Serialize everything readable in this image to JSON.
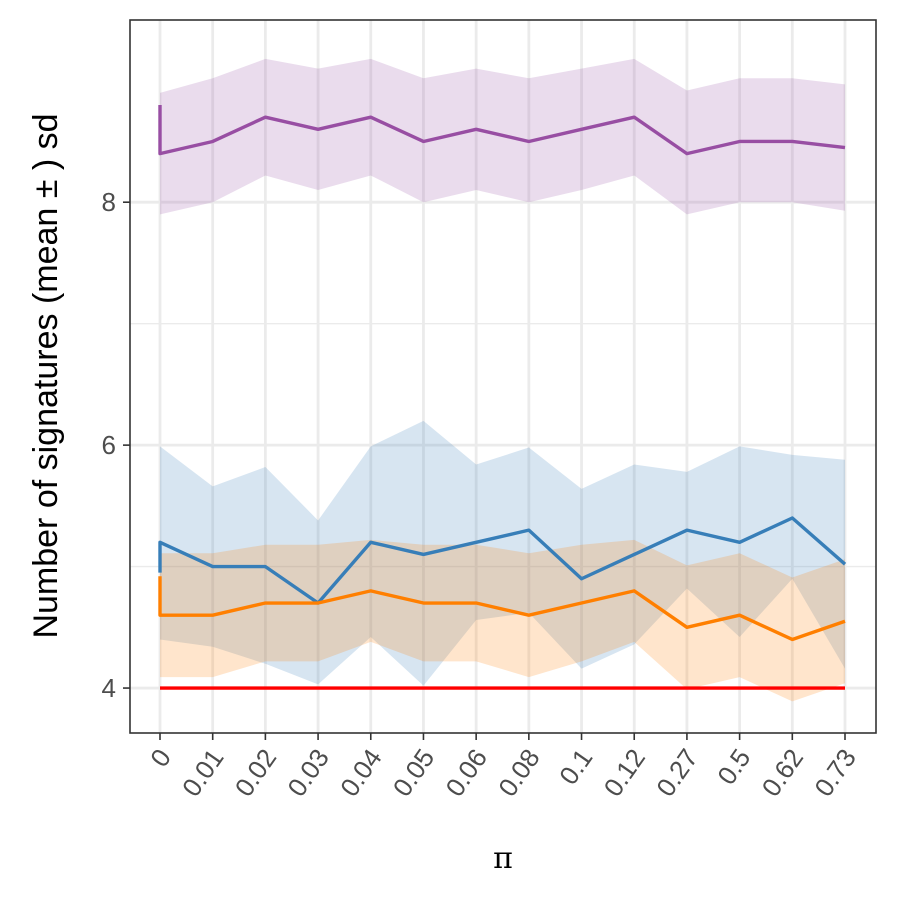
{
  "chart_data": {
    "type": "line",
    "title": "",
    "xlabel": "π",
    "ylabel": "Number of signatures (mean ± ) sd",
    "categories": [
      "0",
      "0.01",
      "0.02",
      "0.03",
      "0.04",
      "0.05",
      "0.06",
      "0.08",
      "0.1",
      "0.12",
      "0.27",
      "0.5",
      "0.62",
      "0.73"
    ],
    "x_tick_rotation_deg": -55,
    "ylim": [
      3.63,
      9.5
    ],
    "yticks": [
      4,
      6,
      8
    ],
    "grid": true,
    "legend": "none",
    "series": [
      {
        "color": "#984EA3",
        "band_opacity": 0.2,
        "start": [
          8.8,
          8.4
        ],
        "values": [
          8.4,
          8.5,
          8.7,
          8.6,
          8.7,
          8.5,
          8.6,
          8.5,
          8.6,
          8.7,
          8.4,
          8.5,
          8.5,
          8.45
        ],
        "lower": [
          7.9,
          8.0,
          8.22,
          8.1,
          8.22,
          8.0,
          8.1,
          8.0,
          8.1,
          8.22,
          7.9,
          8.0,
          8.0,
          7.93
        ],
        "upper": [
          8.9,
          9.02,
          9.18,
          9.1,
          9.18,
          9.02,
          9.1,
          9.02,
          9.1,
          9.18,
          8.92,
          9.02,
          9.02,
          8.97
        ]
      },
      {
        "color": "#377EB8",
        "band_opacity": 0.2,
        "start": [
          4.95,
          5.2
        ],
        "values": [
          5.2,
          5.0,
          5.0,
          4.7,
          5.2,
          5.1,
          5.2,
          5.3,
          4.9,
          5.1,
          5.3,
          5.2,
          5.4,
          5.02
        ],
        "lower": [
          4.4,
          4.34,
          4.2,
          4.03,
          4.42,
          4.02,
          4.56,
          4.62,
          4.16,
          4.36,
          4.82,
          4.42,
          4.9,
          4.16
        ],
        "upper": [
          5.99,
          5.66,
          5.82,
          5.38,
          5.99,
          6.2,
          5.84,
          5.98,
          5.64,
          5.84,
          5.78,
          5.99,
          5.92,
          5.88
        ]
      },
      {
        "color": "#FF7F00",
        "band_opacity": 0.2,
        "start": [
          4.92,
          4.6
        ],
        "values": [
          4.6,
          4.6,
          4.7,
          4.7,
          4.8,
          4.7,
          4.7,
          4.6,
          4.7,
          4.8,
          4.5,
          4.6,
          4.4,
          4.55
        ],
        "lower": [
          4.09,
          4.09,
          4.22,
          4.22,
          4.38,
          4.22,
          4.22,
          4.09,
          4.22,
          4.38,
          3.99,
          4.09,
          3.89,
          4.04
        ],
        "upper": [
          5.11,
          5.11,
          5.18,
          5.18,
          5.22,
          5.18,
          5.18,
          5.11,
          5.18,
          5.22,
          5.01,
          5.11,
          4.91,
          5.06
        ]
      },
      {
        "color": "#FF0000",
        "band_opacity": 0,
        "values": [
          4,
          4,
          4,
          4,
          4,
          4,
          4,
          4,
          4,
          4,
          4,
          4,
          4,
          4
        ]
      }
    ]
  }
}
